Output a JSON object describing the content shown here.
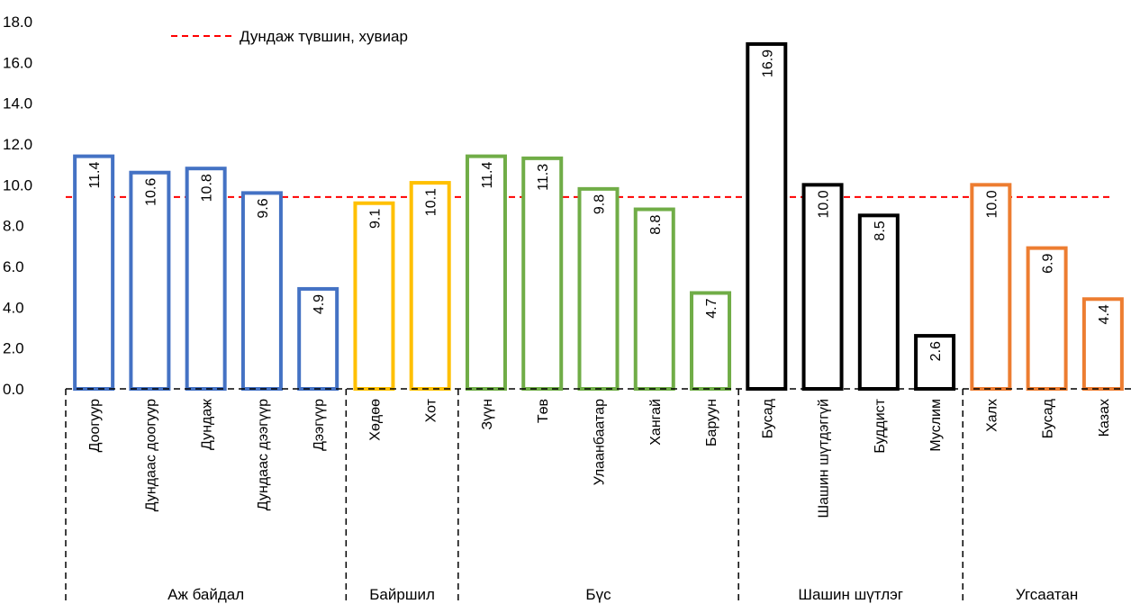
{
  "chart_data": {
    "type": "bar",
    "title": "",
    "xlabel": "",
    "ylabel": "",
    "ylim": [
      0,
      18
    ],
    "yticks": [
      "0.0",
      "2.0",
      "4.0",
      "6.0",
      "8.0",
      "10.0",
      "12.0",
      "14.0",
      "16.0",
      "18.0"
    ],
    "reference_line": {
      "label": "Дундаж түвшин, хувиар",
      "value": 9.4,
      "color": "#ff0000"
    },
    "legend_position": "top-left",
    "groups": [
      {
        "name": "Аж байдал",
        "color": "#4472c4",
        "categories": [
          "Доогуур",
          "Дундаас доогуур",
          "Дундаж",
          "Дундаас дээгүүр",
          "Дээгүүр"
        ],
        "values": [
          11.4,
          10.6,
          10.8,
          9.6,
          4.9
        ],
        "labels": [
          "11.4",
          "10.6",
          "10.8",
          "9.6",
          "4.9"
        ]
      },
      {
        "name": "Байршил",
        "color": "#ffc000",
        "categories": [
          "Хөдөө",
          "Хот"
        ],
        "values": [
          9.1,
          10.1
        ],
        "labels": [
          "9.1",
          "10.1"
        ]
      },
      {
        "name": "Бүс",
        "color": "#70ad47",
        "categories": [
          "Зүүн",
          "Төв",
          "Улаанбаатар",
          "Хангай",
          "Баруун"
        ],
        "values": [
          11.4,
          11.3,
          9.8,
          8.8,
          4.7
        ],
        "labels": [
          "11.4",
          "11.3",
          "9.8",
          "8.8",
          "4.7"
        ]
      },
      {
        "name": "Шашин шүтлэг",
        "color": "#000000",
        "categories": [
          "Бусад",
          "Шашин шүтдэггүй",
          "Буддист",
          "Муслим"
        ],
        "values": [
          16.9,
          10.0,
          8.5,
          2.6
        ],
        "labels": [
          "16.9",
          "10.0",
          "8.5",
          "2.6"
        ]
      },
      {
        "name": "Угсаатан",
        "color": "#ed7d31",
        "categories": [
          "Халх",
          "Бусад",
          "Казах"
        ],
        "values": [
          10.0,
          6.9,
          4.4
        ],
        "labels": [
          "10.0",
          "6.9",
          "4.4"
        ]
      }
    ]
  }
}
